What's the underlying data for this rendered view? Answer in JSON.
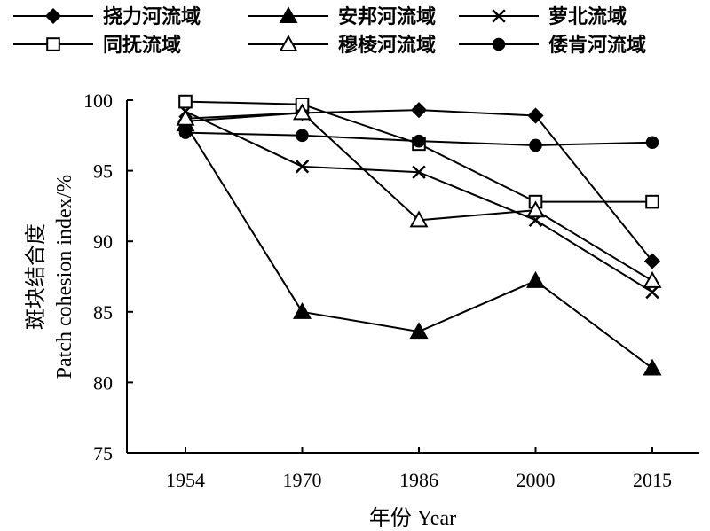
{
  "chart_data": {
    "type": "line",
    "xlabel": "年份 Year",
    "ylabel_cn": "斑块结合度",
    "ylabel_en": "Patch cohesion index/%",
    "categories": [
      "1954",
      "1970",
      "1986",
      "2000",
      "2015"
    ],
    "ylim": [
      75,
      100
    ],
    "yticks": [
      "75",
      "80",
      "85",
      "90",
      "95",
      "100"
    ],
    "grid": false,
    "legend_position": "top",
    "series": [
      {
        "name": "挠力河流域",
        "marker": "diamond-filled",
        "values": [
          98.5,
          99.1,
          99.3,
          98.9,
          88.6
        ]
      },
      {
        "name": "安邦河流域",
        "marker": "triangle-filled",
        "values": [
          98.3,
          85.0,
          83.6,
          87.2,
          81.0
        ]
      },
      {
        "name": "萝北流域",
        "marker": "x",
        "values": [
          99.2,
          95.3,
          94.9,
          91.5,
          86.4
        ]
      },
      {
        "name": "同抚流域",
        "marker": "square-open",
        "values": [
          99.9,
          99.7,
          96.9,
          92.8,
          92.8
        ]
      },
      {
        "name": "穆棱河流域",
        "marker": "triangle-open",
        "values": [
          98.7,
          99.1,
          91.5,
          92.2,
          87.2
        ]
      },
      {
        "name": "倭肯河流域",
        "marker": "circle-filled",
        "values": [
          97.7,
          97.5,
          97.1,
          96.8,
          97.0
        ]
      }
    ]
  }
}
